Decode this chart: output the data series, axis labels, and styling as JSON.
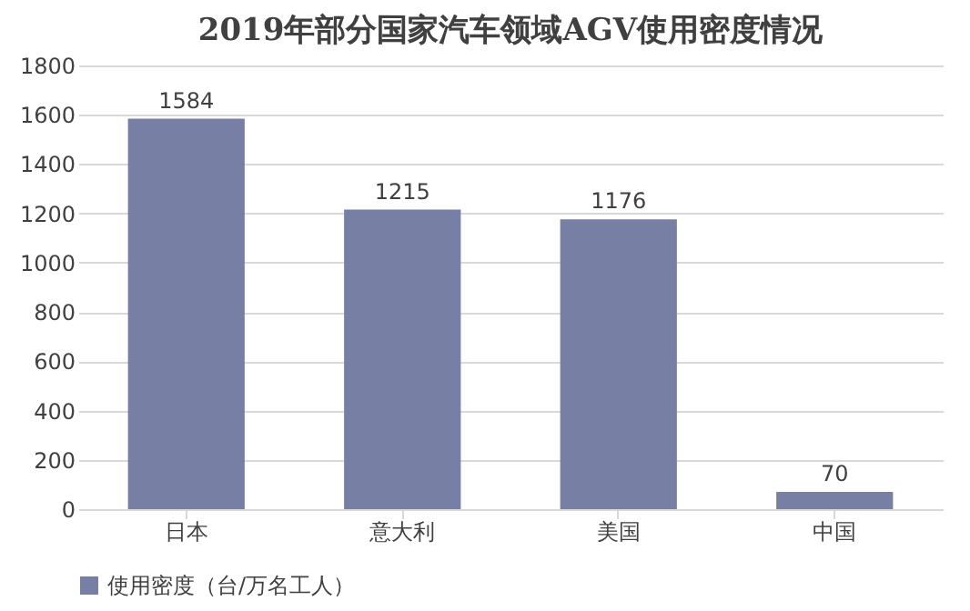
{
  "chart_data": {
    "type": "bar",
    "title": "2019年部分国家汽车领域AGV使用密度情况",
    "categories": [
      "日本",
      "意大利",
      "美国",
      "中国"
    ],
    "series": [
      {
        "name": "使用密度（台/万名工人）",
        "color": "#777fa5",
        "values": [
          1584,
          1215,
          1176,
          70
        ]
      }
    ],
    "ylim": [
      0,
      1800
    ],
    "yticks": [
      0,
      200,
      400,
      600,
      800,
      1000,
      1200,
      1400,
      1600,
      1800
    ],
    "grid": "y",
    "legend": "bottom",
    "data_labels": true
  }
}
